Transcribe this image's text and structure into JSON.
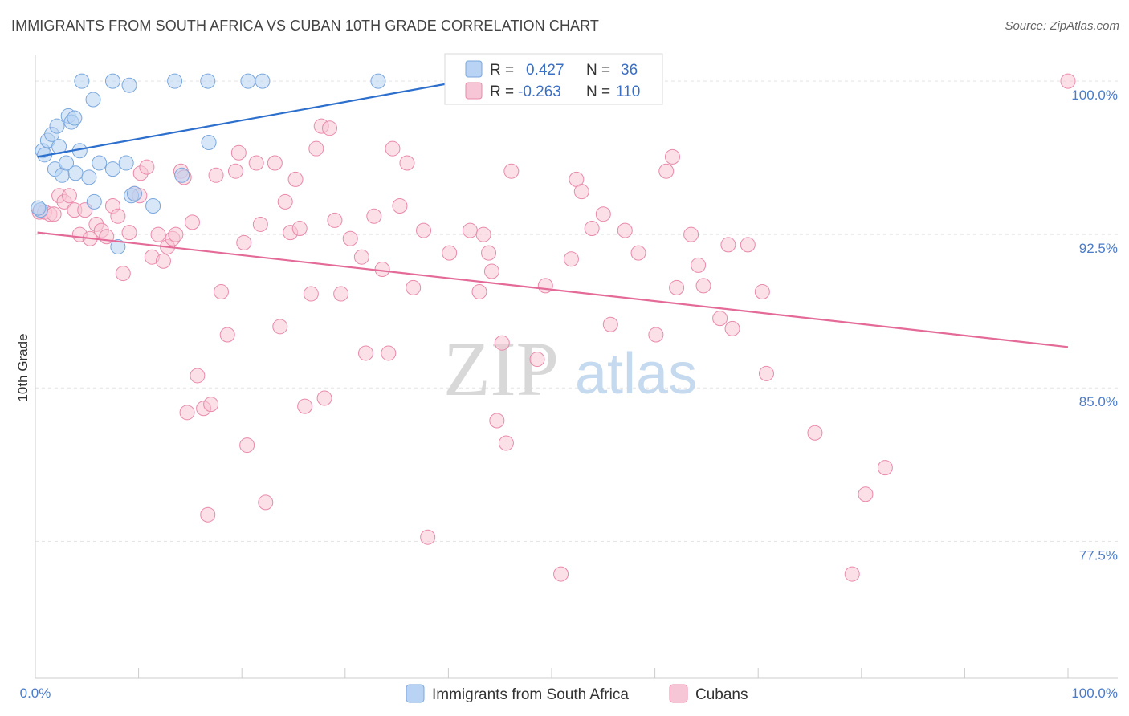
{
  "header": {
    "title": "IMMIGRANTS FROM SOUTH AFRICA VS CUBAN 10TH GRADE CORRELATION CHART",
    "source": "Source: ZipAtlas.com"
  },
  "colors": {
    "blue_fill": "#b8d3f3",
    "blue_stroke": "#7aa7dd",
    "blue_line": "#2d6fcc",
    "pink_fill": "#f7c6d6",
    "pink_stroke": "#e98aaa",
    "pink_line": "#e46a97",
    "grid": "#e3e3e3",
    "axis_label": "#4a7cc9"
  },
  "legend": {
    "rows": [
      {
        "r_label": "R = ",
        "r_value": "0.427",
        "n_label": "N = ",
        "n_value": "36"
      },
      {
        "r_label": "R = ",
        "r_value": "-0.263",
        "n_label": "N = ",
        "n_value": "110"
      }
    ]
  },
  "watermark": {
    "zip": "ZIP",
    "atlas": "atlas"
  },
  "chart_data": {
    "type": "scatter",
    "title": "IMMIGRANTS FROM SOUTH AFRICA VS CUBAN 10TH GRADE CORRELATION CHART",
    "xlabel": "",
    "ylabel": "10th Grade",
    "xlim": [
      0,
      100
    ],
    "ylim": [
      70.8,
      101.3
    ],
    "x_tick_labels": [
      {
        "value": 0,
        "label": "0.0%"
      },
      {
        "value": 100,
        "label": "100.0%"
      }
    ],
    "y_ticks": [
      {
        "value": 100.0,
        "label": "100.0%"
      },
      {
        "value": 92.5,
        "label": "92.5%"
      },
      {
        "value": 85.0,
        "label": "85.0%"
      },
      {
        "value": 77.5,
        "label": "77.5%"
      }
    ],
    "series": [
      {
        "name": "Immigrants from South Africa",
        "color": "blue",
        "r": 0.427,
        "n": 36,
        "trend": {
          "x": [
            0.2,
            41.3
          ],
          "y": [
            96.3,
            100.0
          ]
        },
        "points": [
          [
            0.5,
            93.7
          ],
          [
            0.7,
            96.6
          ],
          [
            0.9,
            96.4
          ],
          [
            1.2,
            97.1
          ],
          [
            1.6,
            97.4
          ],
          [
            1.9,
            95.7
          ],
          [
            2.1,
            97.8
          ],
          [
            2.3,
            96.8
          ],
          [
            2.6,
            95.4
          ],
          [
            3.0,
            96.0
          ],
          [
            3.2,
            98.3
          ],
          [
            3.5,
            98.0
          ],
          [
            3.8,
            98.2
          ],
          [
            3.9,
            95.5
          ],
          [
            4.3,
            96.6
          ],
          [
            5.2,
            95.3
          ],
          [
            5.7,
            94.1
          ],
          [
            6.2,
            96.0
          ],
          [
            7.5,
            95.7
          ],
          [
            8.0,
            91.9
          ],
          [
            8.8,
            96.0
          ],
          [
            9.3,
            94.4
          ],
          [
            11.4,
            93.9
          ],
          [
            14.2,
            95.4
          ],
          [
            16.8,
            97.0
          ],
          [
            4.5,
            100.0
          ],
          [
            7.5,
            100.0
          ],
          [
            9.1,
            99.8
          ],
          [
            13.5,
            100.0
          ],
          [
            16.7,
            100.0
          ],
          [
            20.6,
            100.0
          ],
          [
            22.0,
            100.0
          ],
          [
            33.2,
            100.0
          ],
          [
            5.6,
            99.1
          ],
          [
            9.6,
            94.5
          ],
          [
            0.3,
            93.8
          ]
        ]
      },
      {
        "name": "Cubans",
        "color": "pink",
        "r": -0.263,
        "n": 110,
        "trend": {
          "x": [
            0.2,
            100.0
          ],
          "y": [
            92.6,
            87.0
          ]
        },
        "points": [
          [
            0.4,
            93.6
          ],
          [
            0.9,
            93.6
          ],
          [
            1.4,
            93.5
          ],
          [
            1.8,
            93.5
          ],
          [
            2.3,
            94.4
          ],
          [
            2.8,
            94.1
          ],
          [
            3.3,
            94.4
          ],
          [
            3.8,
            93.7
          ],
          [
            4.3,
            92.5
          ],
          [
            4.8,
            93.7
          ],
          [
            5.3,
            92.3
          ],
          [
            5.9,
            93.0
          ],
          [
            6.4,
            92.7
          ],
          [
            6.9,
            92.4
          ],
          [
            7.5,
            93.9
          ],
          [
            8.0,
            93.4
          ],
          [
            8.5,
            90.6
          ],
          [
            9.1,
            92.6
          ],
          [
            9.6,
            94.5
          ],
          [
            10.1,
            94.4
          ],
          [
            10.2,
            95.5
          ],
          [
            10.8,
            95.8
          ],
          [
            11.3,
            91.4
          ],
          [
            11.9,
            92.5
          ],
          [
            12.4,
            91.2
          ],
          [
            12.8,
            91.9
          ],
          [
            13.3,
            92.3
          ],
          [
            13.6,
            92.5
          ],
          [
            14.1,
            95.6
          ],
          [
            14.4,
            95.3
          ],
          [
            14.7,
            83.8
          ],
          [
            15.2,
            93.1
          ],
          [
            15.7,
            85.6
          ],
          [
            16.3,
            84.0
          ],
          [
            16.7,
            78.8
          ],
          [
            17.0,
            84.2
          ],
          [
            17.5,
            95.4
          ],
          [
            18.0,
            89.7
          ],
          [
            18.6,
            87.6
          ],
          [
            19.4,
            95.6
          ],
          [
            19.7,
            96.5
          ],
          [
            20.2,
            92.1
          ],
          [
            20.5,
            82.2
          ],
          [
            21.4,
            96.0
          ],
          [
            21.8,
            93.0
          ],
          [
            22.3,
            79.4
          ],
          [
            23.2,
            96.0
          ],
          [
            23.7,
            88.0
          ],
          [
            24.2,
            94.1
          ],
          [
            24.7,
            92.6
          ],
          [
            25.2,
            95.2
          ],
          [
            25.6,
            92.8
          ],
          [
            26.1,
            84.1
          ],
          [
            26.7,
            89.6
          ],
          [
            27.2,
            96.7
          ],
          [
            27.7,
            97.8
          ],
          [
            28.0,
            84.5
          ],
          [
            28.5,
            97.7
          ],
          [
            29.0,
            93.2
          ],
          [
            29.6,
            89.6
          ],
          [
            30.5,
            92.3
          ],
          [
            31.6,
            91.4
          ],
          [
            32.0,
            86.7
          ],
          [
            32.8,
            93.4
          ],
          [
            33.6,
            90.8
          ],
          [
            34.2,
            86.7
          ],
          [
            34.6,
            96.7
          ],
          [
            35.3,
            93.9
          ],
          [
            36.0,
            96.0
          ],
          [
            36.6,
            89.9
          ],
          [
            37.6,
            92.7
          ],
          [
            38.0,
            77.7
          ],
          [
            40.1,
            91.6
          ],
          [
            42.1,
            92.7
          ],
          [
            43.0,
            89.7
          ],
          [
            43.4,
            92.5
          ],
          [
            43.9,
            91.6
          ],
          [
            44.2,
            90.7
          ],
          [
            44.7,
            83.4
          ],
          [
            45.2,
            87.2
          ],
          [
            45.6,
            82.3
          ],
          [
            46.1,
            95.6
          ],
          [
            48.6,
            86.4
          ],
          [
            49.4,
            90.0
          ],
          [
            50.9,
            75.9
          ],
          [
            51.9,
            91.3
          ],
          [
            52.4,
            95.2
          ],
          [
            52.9,
            94.6
          ],
          [
            53.9,
            92.8
          ],
          [
            55.0,
            93.5
          ],
          [
            55.7,
            88.1
          ],
          [
            57.1,
            92.7
          ],
          [
            58.4,
            91.6
          ],
          [
            60.1,
            87.6
          ],
          [
            61.1,
            95.6
          ],
          [
            61.7,
            96.3
          ],
          [
            62.1,
            89.9
          ],
          [
            63.5,
            92.5
          ],
          [
            64.2,
            91.0
          ],
          [
            64.7,
            90.0
          ],
          [
            66.3,
            88.4
          ],
          [
            67.1,
            92.0
          ],
          [
            67.5,
            87.9
          ],
          [
            69.0,
            92.0
          ],
          [
            70.4,
            89.7
          ],
          [
            70.8,
            85.7
          ],
          [
            75.5,
            82.8
          ],
          [
            79.1,
            75.9
          ],
          [
            80.4,
            79.8
          ],
          [
            82.3,
            81.1
          ],
          [
            100.0,
            100.0
          ]
        ]
      }
    ]
  },
  "bottom_legend": {
    "items": [
      {
        "label": "Immigrants from South Africa"
      },
      {
        "label": "Cubans"
      }
    ]
  }
}
